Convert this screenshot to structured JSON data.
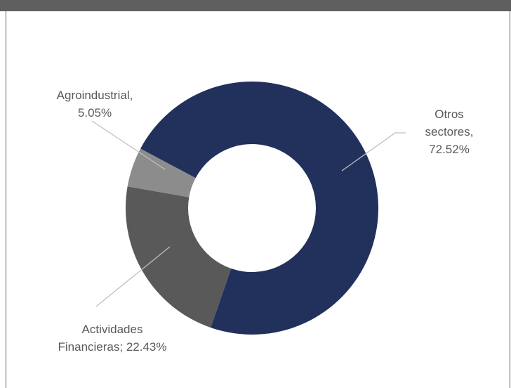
{
  "chart_data": {
    "type": "pie",
    "variant": "donut",
    "slices": [
      {
        "label": "Otros sectores",
        "value": 72.52,
        "color": "#22315c",
        "label_lines": [
          "Otros",
          "sectores,",
          "72.52%"
        ]
      },
      {
        "label": "Actividades Financieras",
        "value": 22.43,
        "color": "#595959",
        "label_lines": [
          "Actividades",
          "Financieras; 22.43%"
        ]
      },
      {
        "label": "Agroindustrial",
        "value": 5.05,
        "color": "#8c8c8c",
        "label_lines": [
          "Agroindustrial,",
          "5.05%"
        ]
      }
    ]
  },
  "colors": {
    "header_bar": "#5f5f5f",
    "label_text": "#595959",
    "leader_line": "#bfbfbf"
  }
}
